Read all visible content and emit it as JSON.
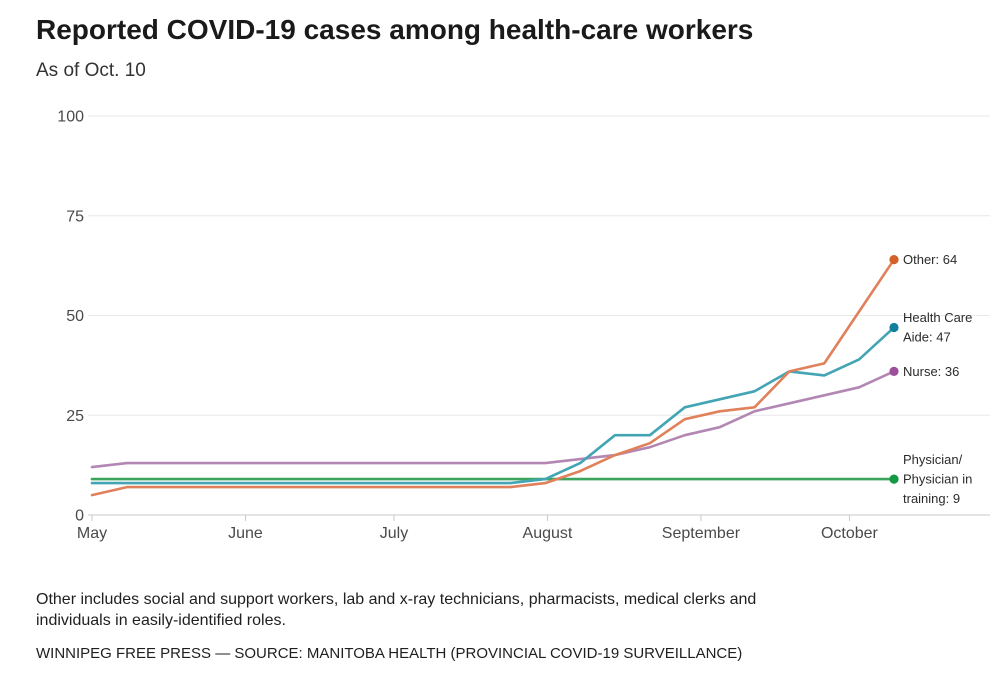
{
  "header": {
    "title": "Reported COVID-19 cases among health-care workers",
    "subtitle": "As of Oct. 10"
  },
  "footer": {
    "note": "Other includes social and support workers, lab and x-ray technicians, pharmacists, medical clerks and individuals in easily-identified roles.",
    "source": "WINNIPEG FREE PRESS — SOURCE: MANITOBA HEALTH (PROVINCIAL COVID-19 SURVEILLANCE)"
  },
  "chart_data": {
    "type": "line",
    "title": "Reported COVID-19 cases among health-care workers",
    "subtitle": "As of Oct. 10",
    "xlabel": "",
    "ylabel": "",
    "ylim": [
      0,
      100
    ],
    "y_ticks": [
      0,
      25,
      50,
      75,
      100
    ],
    "grid": "horizontal",
    "x_unit": "weekly points, May 1 to Oct 10",
    "x_tick_labels": [
      "May",
      "June",
      "July",
      "August",
      "September",
      "October"
    ],
    "month_day_offsets": [
      0,
      31,
      61,
      92,
      123,
      153
    ],
    "total_days": 162,
    "legend_position": "end-of-line labels, right side",
    "series": [
      {
        "name": "Other",
        "end_label_lines": [
          "Other: 64"
        ],
        "end_value": 64,
        "color": "#e0815c",
        "dot_color": "#d2622a",
        "values": [
          5,
          7,
          7,
          7,
          7,
          7,
          7,
          7,
          7,
          7,
          7,
          7,
          7,
          8,
          11,
          15,
          18,
          24,
          26,
          27,
          36,
          38,
          51,
          64
        ]
      },
      {
        "name": "Health Care Aide",
        "end_label_lines": [
          "Health Care",
          "Aide: 47"
        ],
        "end_value": 47,
        "color": "#43a5b4",
        "dot_color": "#11809a",
        "values": [
          8,
          8,
          8,
          8,
          8,
          8,
          8,
          8,
          8,
          8,
          8,
          8,
          8,
          9,
          13,
          20,
          20,
          27,
          29,
          31,
          36,
          35,
          39,
          47
        ]
      },
      {
        "name": "Nurse",
        "end_label_lines": [
          "Nurse: 36"
        ],
        "end_value": 36,
        "color": "#b387b3",
        "dot_color": "#9c4f9c",
        "values": [
          12,
          13,
          13,
          13,
          13,
          13,
          13,
          13,
          13,
          13,
          13,
          13,
          13,
          13,
          14,
          15,
          17,
          20,
          22,
          26,
          28,
          30,
          32,
          36
        ]
      },
      {
        "name": "Physician/Physician in training",
        "end_label_lines": [
          "Physician/",
          "Physician in",
          "training: 9"
        ],
        "end_value": 9,
        "color": "#3ba55f",
        "dot_color": "#149844",
        "values": [
          9,
          9,
          9,
          9,
          9,
          9,
          9,
          9,
          9,
          9,
          9,
          9,
          9,
          9,
          9,
          9,
          9,
          9,
          9,
          9,
          9,
          9,
          9,
          9
        ]
      }
    ]
  }
}
